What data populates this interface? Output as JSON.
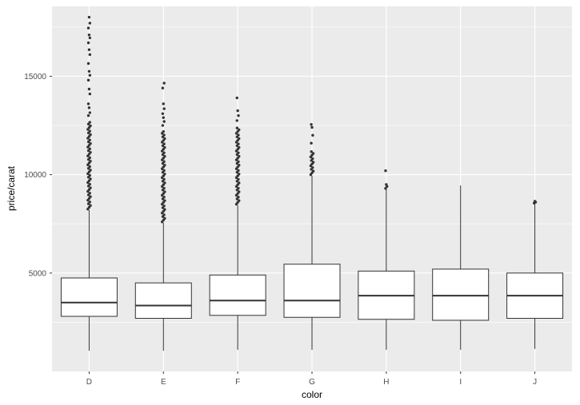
{
  "chart_data": {
    "type": "boxplot",
    "title": "",
    "xlabel": "color",
    "ylabel": "price/carat",
    "categories": [
      "D",
      "E",
      "F",
      "G",
      "H",
      "I",
      "J"
    ],
    "y_ticks": [
      5000,
      10000,
      15000
    ],
    "y_minor_ticks": [
      2500,
      7500,
      12500,
      17500
    ],
    "ylim": [
      0,
      18550
    ],
    "legend": "none",
    "grid": "on",
    "panel_bg": "#EBEBEB",
    "grid_color": "#FFFFFF",
    "box_fill": "#FFFFFF",
    "box_stroke": "#333333",
    "tick_label_color": "#4D4D4D",
    "tick_mark_color": "#333333",
    "series": [
      {
        "category": "D",
        "whisker_low": 1050,
        "q1": 2800,
        "median": 3500,
        "q3": 4750,
        "whisker_high": 8200,
        "outlier_range": [
          8250,
          12700
        ],
        "outliers": [
          13000,
          13150,
          13400,
          13600,
          14100,
          14350,
          14800,
          15050,
          15250,
          15650,
          16100,
          16350,
          16700,
          16950,
          17100,
          17450,
          17700,
          18000
        ]
      },
      {
        "category": "E",
        "whisker_low": 1050,
        "q1": 2700,
        "median": 3350,
        "q3": 4500,
        "whisker_high": 7550,
        "outlier_range": [
          7600,
          12250
        ],
        "outliers": [
          12500,
          12700,
          12900,
          13100,
          13350,
          13600,
          14400,
          14650
        ]
      },
      {
        "category": "F",
        "whisker_low": 1100,
        "q1": 2850,
        "median": 3600,
        "q3": 4900,
        "whisker_high": 8450,
        "outlier_range": [
          8500,
          12450
        ],
        "outliers": [
          12750,
          13000,
          13250,
          13900
        ]
      },
      {
        "category": "G",
        "whisker_low": 1100,
        "q1": 2750,
        "median": 3600,
        "q3": 5450,
        "whisker_high": 9950,
        "outlier_range": [
          10000,
          11250
        ],
        "outliers": [
          11600,
          12000,
          12400,
          12550
        ]
      },
      {
        "category": "H",
        "whisker_low": 1100,
        "q1": 2650,
        "median": 3850,
        "q3": 5100,
        "whisker_high": 9250,
        "outlier_range": null,
        "outliers": [
          9300,
          9400,
          9500,
          10200
        ]
      },
      {
        "category": "I",
        "whisker_low": 1100,
        "q1": 2600,
        "median": 3850,
        "q3": 5200,
        "whisker_high": 9450,
        "outlier_range": null,
        "outliers": []
      },
      {
        "category": "J",
        "whisker_low": 1150,
        "q1": 2700,
        "median": 3850,
        "q3": 5000,
        "whisker_high": 8500,
        "outlier_range": null,
        "outliers": [
          8550,
          8600,
          8650
        ]
      }
    ]
  }
}
